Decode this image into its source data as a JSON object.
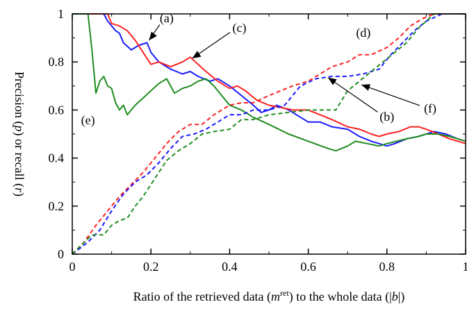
{
  "chart_data": {
    "type": "line",
    "title": "",
    "xlabel": "Ratio of the retrieved data (m^ret) to the whole data (|b|)",
    "xlabel_parts": {
      "pre": "Ratio of the retrieved data (",
      "m": "m",
      "ret": "ret",
      "mid": ") to the whole data (|",
      "b": "b",
      "post": "|)"
    },
    "ylabel": "Precision (p) or recall (r)",
    "ylabel_parts": {
      "pre": "Precision (",
      "p": "p",
      "mid": ") or recall (",
      "r": "r",
      "post": ")"
    },
    "xlim": [
      0,
      1
    ],
    "ylim": [
      0,
      1
    ],
    "x_ticks": [
      "0",
      "0.2",
      "0.4",
      "0.6",
      "0.8",
      "1"
    ],
    "y_ticks": [
      "0",
      "0.2",
      "0.4",
      "0.6",
      "0.8",
      "1"
    ],
    "grid": false,
    "colors": {
      "blue": "#1a1aff",
      "red": "#ff2020",
      "green": "#1e8c1e"
    },
    "series": [
      {
        "color": "blue",
        "dash": false,
        "x": [
          0.0,
          0.08,
          0.09,
          0.1,
          0.11,
          0.12,
          0.13,
          0.15,
          0.17,
          0.19,
          0.2,
          0.22,
          0.25,
          0.28,
          0.3,
          0.32,
          0.35,
          0.37,
          0.4,
          0.43,
          0.46,
          0.48,
          0.5,
          0.52,
          0.55,
          0.58,
          0.6,
          0.63,
          0.66,
          0.7,
          0.73,
          0.76,
          0.78,
          0.8,
          0.82,
          0.85,
          0.88,
          0.9,
          0.92,
          0.95,
          0.98,
          1.0
        ],
        "y": [
          1.0,
          1.0,
          0.97,
          0.95,
          0.93,
          0.92,
          0.88,
          0.85,
          0.87,
          0.88,
          0.84,
          0.8,
          0.77,
          0.75,
          0.76,
          0.74,
          0.72,
          0.73,
          0.7,
          0.66,
          0.62,
          0.59,
          0.6,
          0.62,
          0.6,
          0.57,
          0.55,
          0.55,
          0.53,
          0.52,
          0.49,
          0.47,
          0.46,
          0.45,
          0.46,
          0.48,
          0.49,
          0.5,
          0.51,
          0.5,
          0.48,
          0.47
        ]
      },
      {
        "color": "red",
        "dash": false,
        "x": [
          0.0,
          0.09,
          0.1,
          0.12,
          0.14,
          0.16,
          0.18,
          0.2,
          0.22,
          0.25,
          0.28,
          0.3,
          0.32,
          0.34,
          0.37,
          0.4,
          0.42,
          0.44,
          0.47,
          0.5,
          0.53,
          0.56,
          0.6,
          0.63,
          0.66,
          0.7,
          0.73,
          0.76,
          0.78,
          0.8,
          0.83,
          0.86,
          0.88,
          0.9,
          0.93,
          0.96,
          1.0
        ],
        "y": [
          1.0,
          1.0,
          0.96,
          0.95,
          0.93,
          0.89,
          0.84,
          0.79,
          0.8,
          0.78,
          0.8,
          0.82,
          0.79,
          0.76,
          0.72,
          0.69,
          0.7,
          0.68,
          0.64,
          0.62,
          0.61,
          0.6,
          0.6,
          0.58,
          0.56,
          0.53,
          0.52,
          0.5,
          0.49,
          0.5,
          0.51,
          0.53,
          0.53,
          0.52,
          0.5,
          0.48,
          0.46
        ]
      },
      {
        "color": "green",
        "dash": false,
        "x": [
          0.0,
          0.04,
          0.05,
          0.06,
          0.07,
          0.08,
          0.09,
          0.1,
          0.11,
          0.12,
          0.13,
          0.14,
          0.16,
          0.18,
          0.2,
          0.22,
          0.24,
          0.26,
          0.28,
          0.3,
          0.32,
          0.34,
          0.36,
          0.38,
          0.4,
          0.43,
          0.46,
          0.5,
          0.55,
          0.6,
          0.65,
          0.67,
          0.7,
          0.72,
          0.75,
          0.78,
          0.8,
          0.85,
          0.88,
          0.9,
          0.93,
          0.96,
          1.0
        ],
        "y": [
          1.0,
          1.0,
          0.85,
          0.67,
          0.72,
          0.74,
          0.7,
          0.69,
          0.63,
          0.6,
          0.62,
          0.58,
          0.62,
          0.65,
          0.68,
          0.71,
          0.73,
          0.67,
          0.69,
          0.7,
          0.72,
          0.73,
          0.7,
          0.66,
          0.62,
          0.6,
          0.57,
          0.54,
          0.5,
          0.47,
          0.44,
          0.43,
          0.45,
          0.47,
          0.46,
          0.45,
          0.46,
          0.48,
          0.49,
          0.5,
          0.5,
          0.49,
          0.47
        ]
      },
      {
        "color": "red",
        "dash": true,
        "x": [
          0.0,
          0.03,
          0.06,
          0.09,
          0.12,
          0.15,
          0.18,
          0.21,
          0.24,
          0.27,
          0.3,
          0.33,
          0.36,
          0.4,
          0.43,
          0.46,
          0.5,
          0.53,
          0.56,
          0.6,
          0.63,
          0.66,
          0.7,
          0.73,
          0.76,
          0.8,
          0.83,
          0.86,
          0.89,
          0.92,
          1.0
        ],
        "y": [
          0.0,
          0.05,
          0.12,
          0.18,
          0.24,
          0.29,
          0.34,
          0.4,
          0.46,
          0.51,
          0.54,
          0.54,
          0.58,
          0.62,
          0.63,
          0.63,
          0.66,
          0.68,
          0.7,
          0.72,
          0.75,
          0.78,
          0.8,
          0.83,
          0.83,
          0.86,
          0.9,
          0.95,
          0.98,
          1.0,
          1.0
        ]
      },
      {
        "color": "blue",
        "dash": true,
        "x": [
          0.0,
          0.04,
          0.07,
          0.1,
          0.13,
          0.16,
          0.19,
          0.22,
          0.25,
          0.28,
          0.31,
          0.34,
          0.37,
          0.4,
          0.43,
          0.46,
          0.5,
          0.54,
          0.58,
          0.62,
          0.66,
          0.7,
          0.74,
          0.78,
          0.81,
          0.84,
          0.87,
          0.9,
          0.94,
          1.0
        ],
        "y": [
          0.0,
          0.05,
          0.1,
          0.18,
          0.25,
          0.3,
          0.33,
          0.38,
          0.44,
          0.49,
          0.5,
          0.52,
          0.55,
          0.58,
          0.58,
          0.6,
          0.6,
          0.62,
          0.7,
          0.73,
          0.74,
          0.74,
          0.75,
          0.77,
          0.83,
          0.88,
          0.93,
          0.97,
          1.0,
          1.0
        ]
      },
      {
        "color": "green",
        "dash": true,
        "x": [
          0.0,
          0.05,
          0.08,
          0.1,
          0.12,
          0.14,
          0.16,
          0.18,
          0.2,
          0.22,
          0.24,
          0.27,
          0.3,
          0.33,
          0.36,
          0.4,
          0.43,
          0.46,
          0.5,
          0.55,
          0.6,
          0.64,
          0.67,
          0.7,
          0.73,
          0.76,
          0.79,
          0.82,
          0.85,
          0.88,
          0.92,
          1.0
        ],
        "y": [
          0.0,
          0.08,
          0.08,
          0.12,
          0.14,
          0.15,
          0.2,
          0.24,
          0.29,
          0.34,
          0.39,
          0.43,
          0.46,
          0.5,
          0.51,
          0.52,
          0.56,
          0.56,
          0.58,
          0.59,
          0.6,
          0.6,
          0.6,
          0.68,
          0.72,
          0.76,
          0.8,
          0.84,
          0.88,
          0.94,
          1.0,
          1.0
        ]
      }
    ],
    "annotations": [
      {
        "label": "(a)",
        "tx": 0.24,
        "ty": 0.965,
        "ax": 0.195,
        "ay": 0.89,
        "arrow": true
      },
      {
        "label": "(c)",
        "tx": 0.425,
        "ty": 0.925,
        "ax": 0.305,
        "ay": 0.815,
        "arrow": true
      },
      {
        "label": "(d)",
        "tx": 0.74,
        "ty": 0.905,
        "arrow": false
      },
      {
        "label": "(e)",
        "tx": 0.04,
        "ty": 0.54,
        "arrow": false
      },
      {
        "label": "(b)",
        "tx": 0.8,
        "ty": 0.555,
        "ax": 0.65,
        "ay": 0.735,
        "arrow": true
      },
      {
        "label": "(f)",
        "tx": 0.91,
        "ty": 0.59,
        "ax": 0.735,
        "ay": 0.705,
        "arrow": true
      }
    ]
  }
}
